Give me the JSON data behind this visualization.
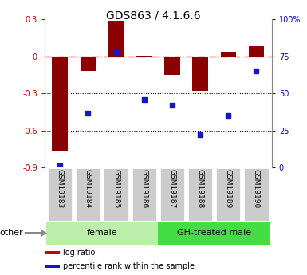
{
  "title": "GDS863 / 4.1.6.6",
  "samples": [
    "GSM19183",
    "GSM19184",
    "GSM19185",
    "GSM19186",
    "GSM19187",
    "GSM19188",
    "GSM19189",
    "GSM19190"
  ],
  "log_ratio": [
    -0.77,
    -0.12,
    0.29,
    0.005,
    -0.15,
    -0.28,
    0.04,
    0.08
  ],
  "percentile_rank": [
    1.5,
    37,
    78,
    46,
    42,
    22,
    35,
    65
  ],
  "ylim_left": [
    -0.9,
    0.3
  ],
  "ylim_right": [
    0,
    100
  ],
  "yticks_left": [
    -0.9,
    -0.6,
    -0.3,
    0.0,
    0.3
  ],
  "yticks_right": [
    0,
    25,
    50,
    75,
    100
  ],
  "ytick_labels_left": [
    "-0.9",
    "-0.6",
    "-0.3",
    "0",
    "0.3"
  ],
  "ytick_labels_right": [
    "0",
    "25",
    "50",
    "75",
    "100%"
  ],
  "hlines_dotted": [
    -0.3,
    -0.6
  ],
  "hline_dashdot": 0.0,
  "bar_color": "#8B0000",
  "scatter_color": "#1515CC",
  "bar_width": 0.55,
  "groups": [
    {
      "label": "female",
      "start": 0,
      "end": 4,
      "color": "#BBEEAA"
    },
    {
      "label": "GH-treated male",
      "start": 4,
      "end": 8,
      "color": "#44DD44"
    }
  ],
  "other_label": "other",
  "legend_items": [
    {
      "label": "log ratio",
      "color": "#CC0000"
    },
    {
      "label": "percentile rank within the sample",
      "color": "#1515CC"
    }
  ],
  "tick_label_color_left": "#CC0000",
  "tick_label_color_right": "#0000CC",
  "box_color": "#CCCCCC",
  "box_edge_color": "#FFFFFF"
}
